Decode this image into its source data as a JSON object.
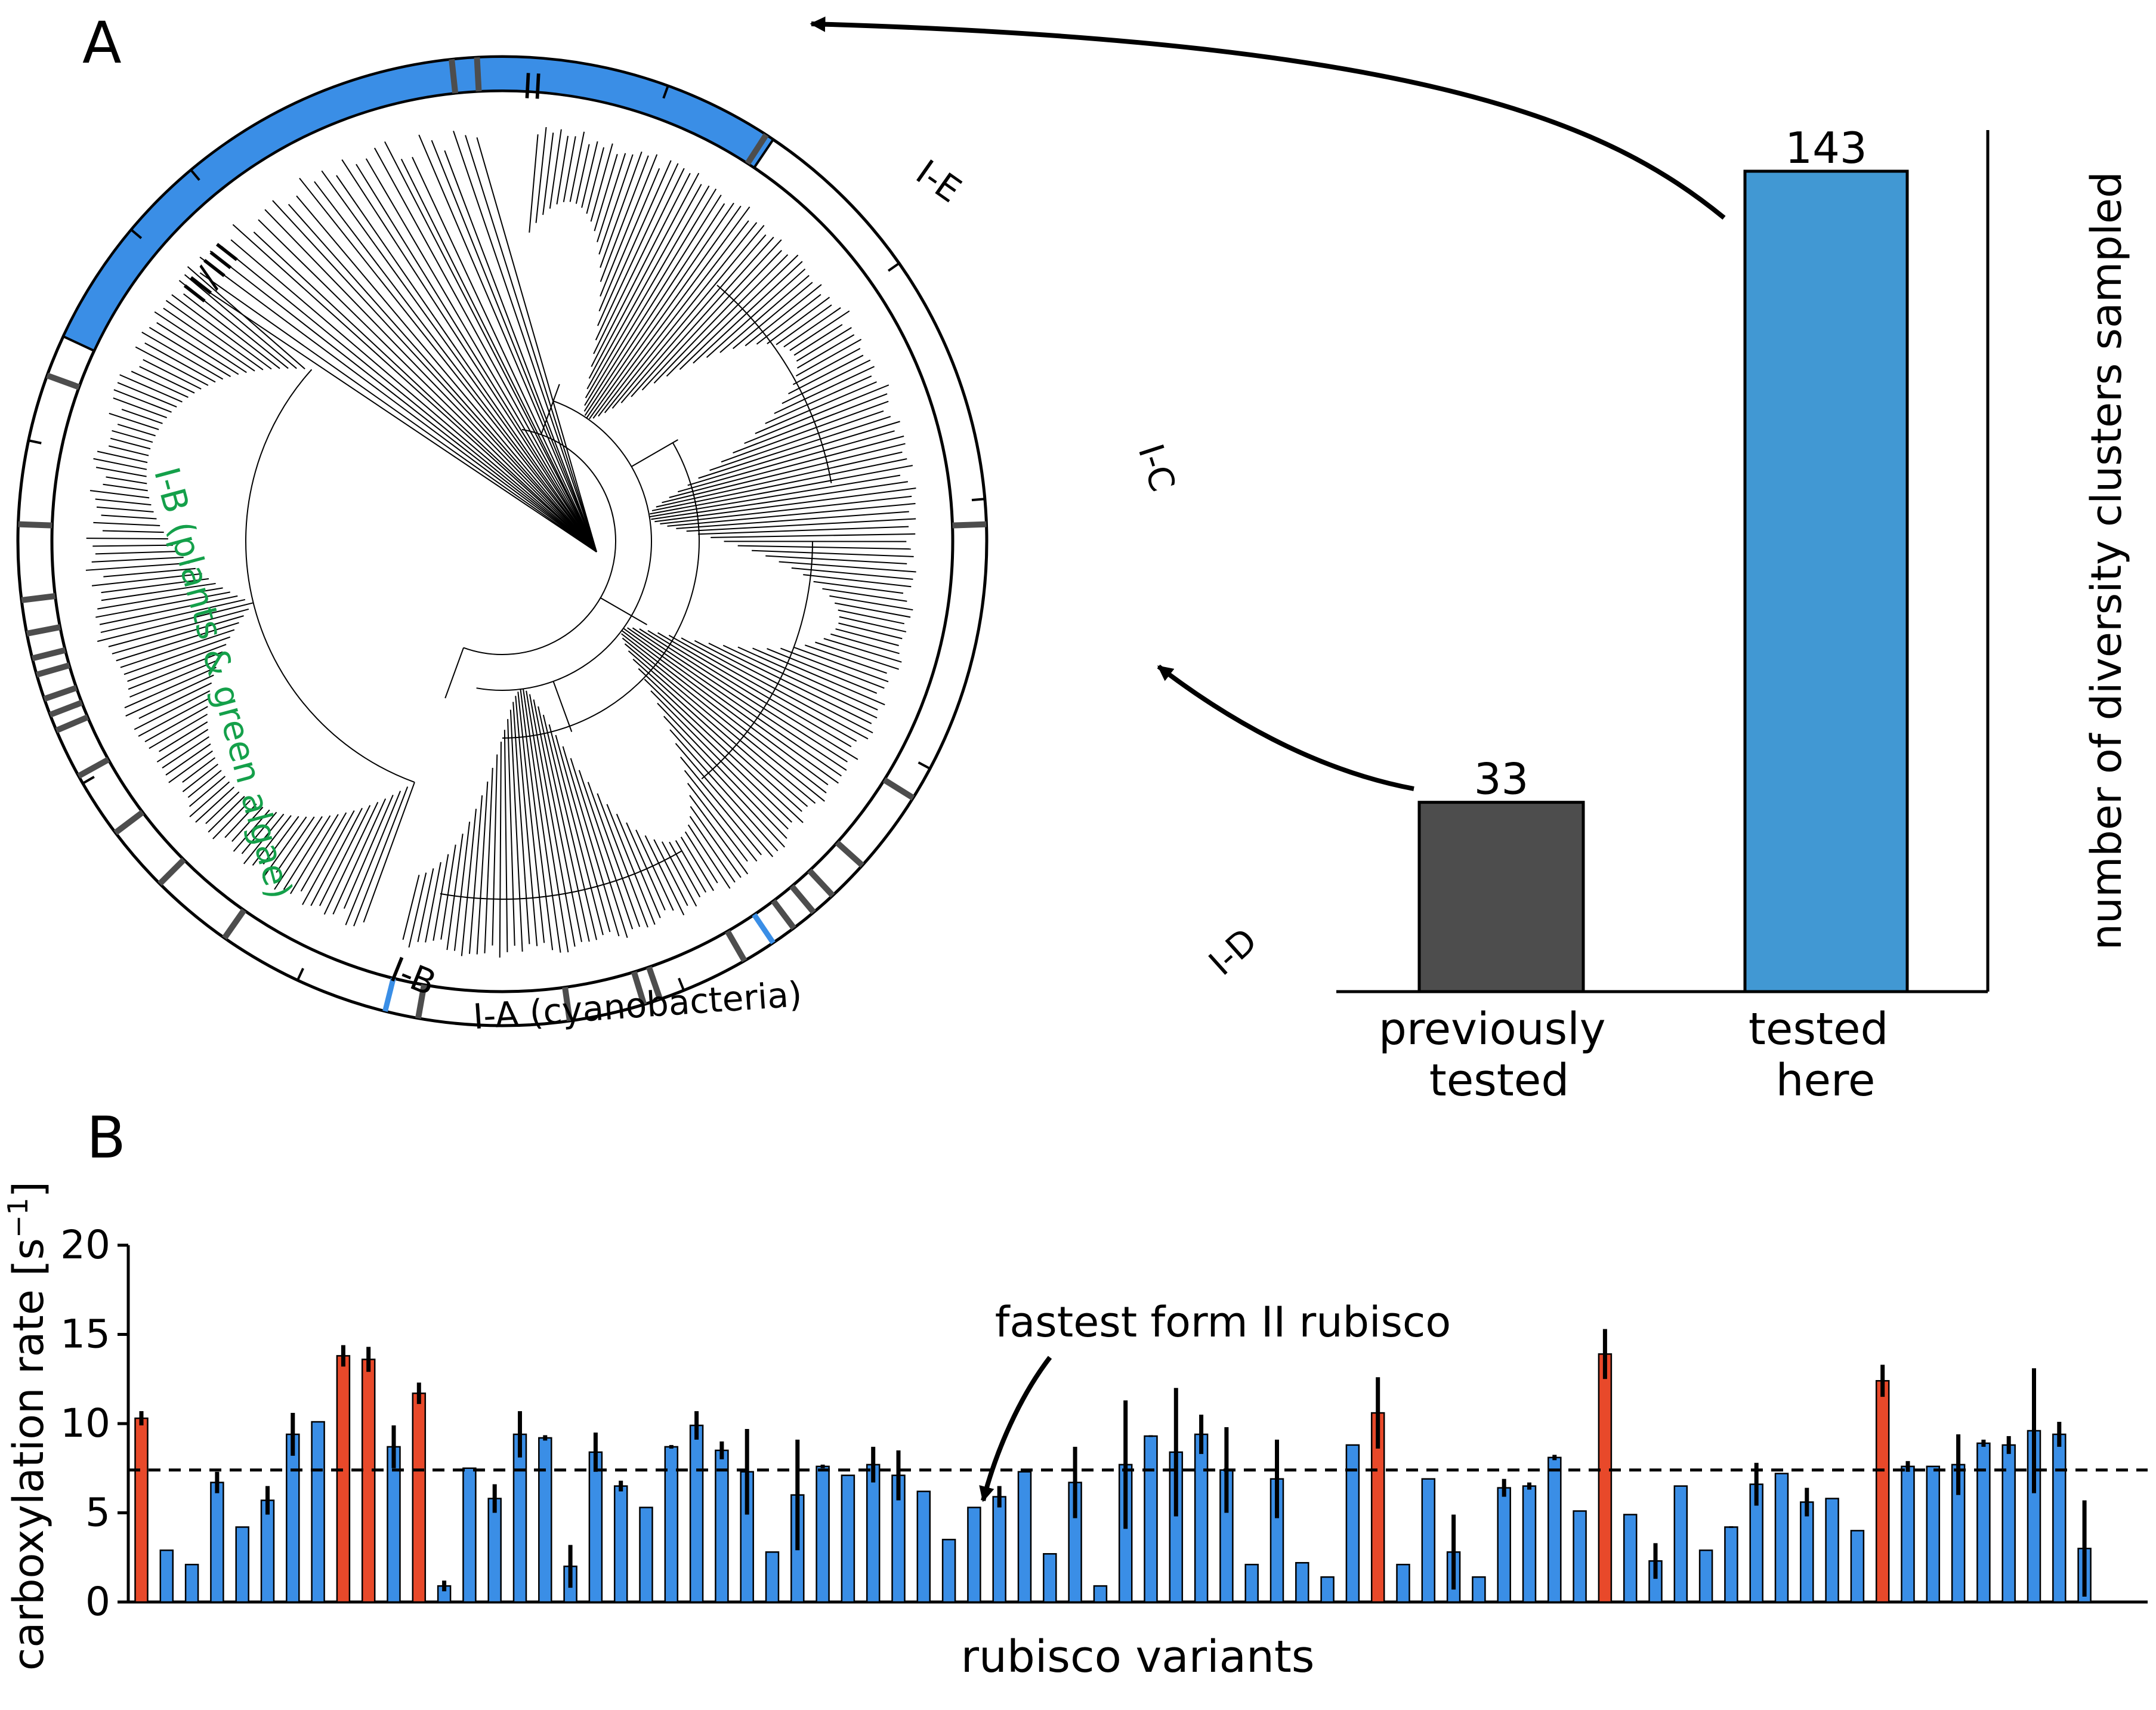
{
  "panels": {
    "a_label": "A",
    "b_label": "B"
  },
  "tree": {
    "clades": [
      {
        "key": "ii",
        "text": "II"
      },
      {
        "key": "ie",
        "text": "I-E"
      },
      {
        "key": "iiiii",
        "text": "II/III"
      },
      {
        "key": "ic",
        "text": "I-C"
      },
      {
        "key": "ib_plants",
        "text": "I-B (plants & green algae)"
      },
      {
        "key": "ib",
        "text": "I-B"
      },
      {
        "key": "ia",
        "text": "I-A (cyanobacteria)"
      },
      {
        "key": "id",
        "text": "I-D"
      }
    ]
  },
  "colors": {
    "blue": "#3a8ee6",
    "bar_blue": "#4198d3",
    "gray": "#4d4d4d",
    "red": "#e8492a",
    "green": "#14a04a",
    "black": "#000000"
  },
  "chart_data": [
    {
      "id": "panel-a-bars",
      "type": "bar",
      "categories": [
        "previously\ntested",
        "tested\nhere"
      ],
      "category_lines": [
        [
          "previously",
          "tested"
        ],
        [
          "tested",
          "here"
        ]
      ],
      "values": [
        33,
        143
      ],
      "data_labels": [
        "33",
        "143"
      ],
      "ylabel": "number of diversity clusters sampled",
      "ylim": [
        0,
        143
      ]
    },
    {
      "id": "panel-b-bars",
      "type": "bar",
      "xlabel": "rubisco variants",
      "ylabel": "carboxylation rate [s",
      "ylabel_sup": "−1",
      "ylabel_end": "]",
      "ylim": [
        0,
        20
      ],
      "yticks": [
        "0",
        "5",
        "10",
        "15",
        "20"
      ],
      "reference_line": {
        "value": 7.4,
        "label": "fastest form II rubisco"
      },
      "values": [
        10.3,
        2.9,
        2.1,
        6.7,
        4.2,
        5.7,
        9.4,
        10.1,
        13.8,
        13.6,
        8.7,
        11.7,
        0.9,
        7.5,
        5.8,
        9.4,
        9.2,
        2.0,
        8.4,
        6.5,
        5.3,
        8.7,
        9.9,
        8.5,
        7.3,
        2.8,
        6.0,
        7.6,
        7.1,
        7.7,
        7.1,
        6.2,
        3.5,
        5.3,
        5.9,
        7.3,
        2.7,
        6.7,
        0.9,
        7.7,
        9.3,
        8.4,
        9.4,
        7.4,
        2.1,
        6.9,
        2.2,
        1.4,
        8.8,
        10.6,
        2.1,
        6.9,
        2.8,
        1.4,
        6.4,
        6.5,
        8.1,
        5.1,
        13.9,
        4.9,
        2.3,
        6.5,
        2.9,
        4.2,
        6.6,
        7.2,
        5.6,
        5.8,
        4.0,
        12.4,
        7.6,
        7.6,
        7.7,
        8.9,
        8.8,
        9.6,
        9.4,
        3.0
      ],
      "errors": [
        0.4,
        0,
        0,
        0.6,
        0,
        0.8,
        1.2,
        0,
        0.6,
        0.7,
        1.2,
        0.6,
        0.3,
        0,
        0.8,
        1.3,
        0.15,
        1.2,
        1.1,
        0.3,
        0,
        0.1,
        0.8,
        0.5,
        2.4,
        0,
        3.1,
        0.1,
        0,
        1.0,
        1.4,
        0,
        0,
        0,
        0.6,
        0,
        0,
        2.0,
        0,
        3.6,
        0.05,
        3.6,
        1.1,
        2.4,
        0,
        2.2,
        0,
        0,
        0,
        2.0,
        0,
        0,
        2.1,
        0,
        0.5,
        0.2,
        0.15,
        0,
        1.4,
        0,
        1.0,
        0,
        0,
        0.05,
        1.2,
        0,
        0.8,
        0,
        0,
        0.9,
        0.3,
        0,
        1.7,
        0.2,
        0.5,
        3.5,
        0.7,
        2.7
      ],
      "highlight_red": [
        0,
        8,
        9,
        11,
        49,
        58,
        69
      ]
    }
  ]
}
